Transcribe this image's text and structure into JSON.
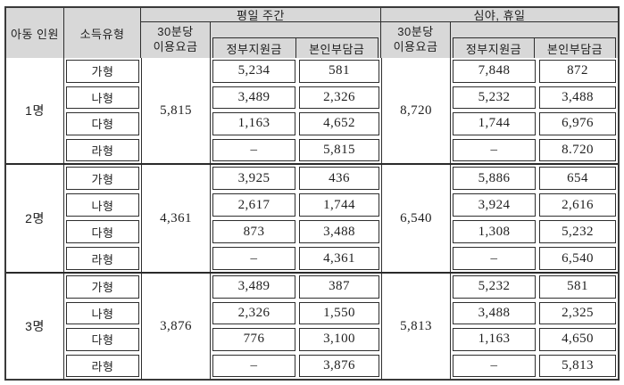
{
  "header": {
    "child_count": "아동 인원",
    "income_type": "소득유형",
    "weekday_title": "평일 주간",
    "night_title": "심야, 휴일",
    "fee_line1": "30분당",
    "fee_line2": "이용요금",
    "gov_subsidy": "정부지원금",
    "self_payment": "본인부담금"
  },
  "sections": [
    {
      "child_count": "1명",
      "weekday_fee": "5,815",
      "night_fee": "8,720",
      "rows": [
        {
          "type": "가형",
          "wd_gov": "5,234",
          "wd_self": "581",
          "nt_gov": "7,848",
          "nt_self": "872"
        },
        {
          "type": "나형",
          "wd_gov": "3,489",
          "wd_self": "2,326",
          "nt_gov": "5,232",
          "nt_self": "3,488"
        },
        {
          "type": "다형",
          "wd_gov": "1,163",
          "wd_self": "4,652",
          "nt_gov": "1,744",
          "nt_self": "6,976"
        },
        {
          "type": "라형",
          "wd_gov": "–",
          "wd_self": "5,815",
          "nt_gov": "–",
          "nt_self": "8.720"
        }
      ]
    },
    {
      "child_count": "2명",
      "weekday_fee": "4,361",
      "night_fee": "6,540",
      "rows": [
        {
          "type": "가형",
          "wd_gov": "3,925",
          "wd_self": "436",
          "nt_gov": "5,886",
          "nt_self": "654"
        },
        {
          "type": "나형",
          "wd_gov": "2,617",
          "wd_self": "1,744",
          "nt_gov": "3,924",
          "nt_self": "2,616"
        },
        {
          "type": "다형",
          "wd_gov": "873",
          "wd_self": "3,488",
          "nt_gov": "1,308",
          "nt_self": "5,232"
        },
        {
          "type": "라형",
          "wd_gov": "–",
          "wd_self": "4,361",
          "nt_gov": "–",
          "nt_self": "6,540"
        }
      ]
    },
    {
      "child_count": "3명",
      "weekday_fee": "3,876",
      "night_fee": "5,813",
      "rows": [
        {
          "type": "가형",
          "wd_gov": "3,489",
          "wd_self": "387",
          "nt_gov": "5,232",
          "nt_self": "581"
        },
        {
          "type": "나형",
          "wd_gov": "2,326",
          "wd_self": "1,550",
          "nt_gov": "3,488",
          "nt_self": "2,325"
        },
        {
          "type": "다형",
          "wd_gov": "776",
          "wd_self": "3,100",
          "nt_gov": "1,163",
          "nt_self": "4,650"
        },
        {
          "type": "라형",
          "wd_gov": "–",
          "wd_self": "3,876",
          "nt_gov": "–",
          "nt_self": "5,813"
        }
      ]
    }
  ],
  "colors": {
    "header_bg": "#d8d8d8",
    "grid_line": "#2e2e2e",
    "outer_border": "#3a3a3a",
    "text": "#1f1f1f"
  }
}
